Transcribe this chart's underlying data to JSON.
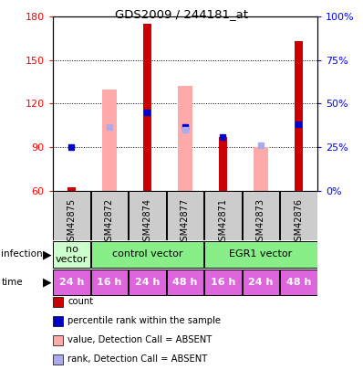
{
  "title": "GDS2009 / 244181_at",
  "samples": [
    "GSM42875",
    "GSM42872",
    "GSM42874",
    "GSM42877",
    "GSM42871",
    "GSM42873",
    "GSM42876"
  ],
  "ylim": [
    60,
    180
  ],
  "yticks": [
    60,
    90,
    120,
    150,
    180
  ],
  "y2lim": [
    0,
    100
  ],
  "y2ticks": [
    0,
    25,
    50,
    75,
    100
  ],
  "y2labels": [
    "0%",
    "25%",
    "50%",
    "75%",
    "100%"
  ],
  "bar_bottom": 60,
  "red_bars": {
    "values": [
      62,
      null,
      175,
      null,
      97,
      null,
      163
    ],
    "color": "#cc0000"
  },
  "pink_bars": {
    "bottoms": [
      null,
      60,
      60,
      60,
      null,
      60,
      null
    ],
    "tops": [
      null,
      130,
      null,
      132,
      null,
      90,
      null
    ],
    "color": "#ffaaaa"
  },
  "blue_squares": {
    "values": [
      90,
      null,
      114,
      104,
      97,
      null,
      106
    ],
    "color": "#0000cc"
  },
  "light_blue_squares": {
    "values": [
      null,
      104,
      null,
      102,
      null,
      91,
      null
    ],
    "color": "#aaaaee"
  },
  "infection_data": [
    {
      "start": 0,
      "end": 1,
      "label": "no\nvector",
      "color": "#ccffcc"
    },
    {
      "start": 1,
      "end": 4,
      "label": "control vector",
      "color": "#88ee88"
    },
    {
      "start": 4,
      "end": 7,
      "label": "EGR1 vector",
      "color": "#88ee88"
    }
  ],
  "time_labels": [
    "24 h",
    "16 h",
    "24 h",
    "48 h",
    "16 h",
    "24 h",
    "48 h"
  ],
  "time_color": "#dd66dd",
  "bg_color": "#cccccc",
  "legend": [
    {
      "label": "count",
      "color": "#cc0000"
    },
    {
      "label": "percentile rank within the sample",
      "color": "#0000cc"
    },
    {
      "label": "value, Detection Call = ABSENT",
      "color": "#ffaaaa"
    },
    {
      "label": "rank, Detection Call = ABSENT",
      "color": "#aaaaee"
    }
  ]
}
